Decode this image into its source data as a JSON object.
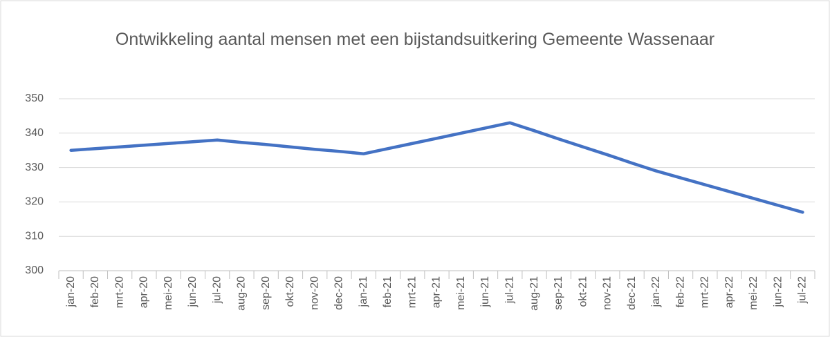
{
  "chart_data": {
    "type": "line",
    "title": "Ontwikkeling aantal mensen met een bijstandsuitkering Gemeente Wassenaar",
    "categories": [
      "jan-20",
      "feb-20",
      "mrt-20",
      "apr-20",
      "mei-20",
      "jun-20",
      "jul-20",
      "aug-20",
      "sep-20",
      "okt-20",
      "nov-20",
      "dec-20",
      "jan-21",
      "feb-21",
      "mrt-21",
      "apr-21",
      "mei-21",
      "jun-21",
      "jul-21",
      "aug-21",
      "sep-21",
      "okt-21",
      "nov-21",
      "dec-21",
      "jan-22",
      "feb-22",
      "mrt-22",
      "apr-22",
      "mei-22",
      "jun-22",
      "jul-22"
    ],
    "series": [
      {
        "name": "Bijstandsuitkering",
        "color": "#4472c4",
        "values": [
          335,
          335.5,
          336,
          336.5,
          337,
          337.5,
          338,
          337.3,
          336.7,
          336,
          335.3,
          334.7,
          334,
          335.5,
          337,
          338.5,
          340,
          341.5,
          343,
          340.7,
          338.3,
          336,
          333.7,
          331.3,
          329,
          327,
          325,
          323,
          321,
          319,
          317
        ]
      }
    ],
    "ylim": [
      300,
      350
    ],
    "yticks": [
      300,
      310,
      320,
      330,
      340,
      350
    ],
    "grid": true
  }
}
